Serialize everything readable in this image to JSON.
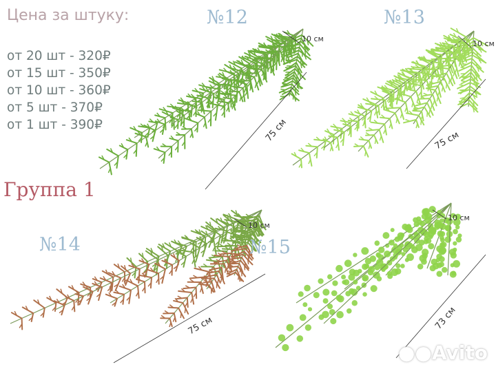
{
  "price": {
    "title": "Цена за штуку:",
    "tiers": [
      "от 20 шт - 320₽",
      "от 15 шт - 350₽",
      "от 10 шт - 360₽",
      "от 5 шт - 370₽",
      "от 1 шт - 390₽"
    ]
  },
  "group_label": "Группа 1",
  "products": [
    {
      "number": "№12",
      "stem": "10 см",
      "length": "75 см",
      "color": "#6caf3c"
    },
    {
      "number": "№13",
      "stem": "10 см",
      "length": "75 см",
      "color": "#a2dc5c"
    },
    {
      "number": "№14",
      "stem": "10 см",
      "length": "75 см",
      "color": "#7aa846"
    },
    {
      "number": "№15",
      "stem": "10 см",
      "length": "73 см",
      "color": "#8fd44a"
    }
  ],
  "watermark": "Avito"
}
